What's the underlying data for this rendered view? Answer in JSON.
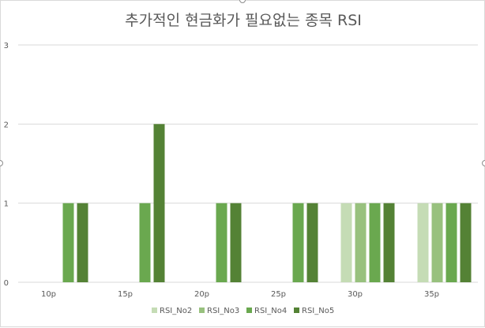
{
  "chart_data": {
    "type": "bar",
    "title": "추가적인 현금화가 필요없는 종목 RSI",
    "categories": [
      "10p",
      "15p",
      "20p",
      "25p",
      "30p",
      "35p"
    ],
    "series": [
      {
        "name": "RSI_No2",
        "color": "#c5dcb5",
        "values": [
          0,
          0,
          0,
          0,
          1,
          1
        ]
      },
      {
        "name": "RSI_No3",
        "color": "#98c17e",
        "values": [
          0,
          0,
          0,
          0,
          1,
          1
        ]
      },
      {
        "name": "RSI_No4",
        "color": "#6aa84f",
        "values": [
          1,
          1,
          1,
          1,
          1,
          1
        ]
      },
      {
        "name": "RSI_No5",
        "color": "#548235",
        "values": [
          1,
          2,
          1,
          1,
          1,
          1
        ]
      }
    ],
    "yticks": [
      "0",
      "1",
      "2",
      "3"
    ],
    "ylim": [
      0,
      3
    ],
    "grid": true,
    "legend": "bottom"
  }
}
